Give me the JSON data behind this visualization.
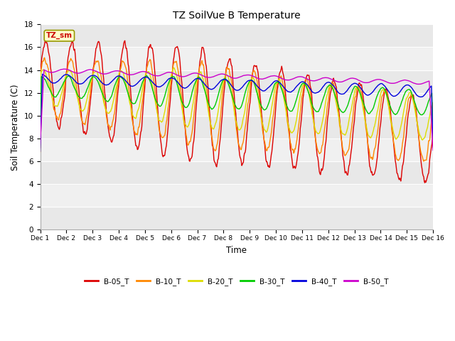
{
  "title": "TZ SoilVue B Temperature",
  "xlabel": "Time",
  "ylabel": "Soil Temperature (C)",
  "ylim": [
    0,
    18
  ],
  "yticks": [
    0,
    2,
    4,
    6,
    8,
    10,
    12,
    14,
    16,
    18
  ],
  "n_days": 15,
  "points_per_day": 48,
  "background_color": "#ffffff",
  "plot_bg_odd": "#e8e8e8",
  "plot_bg_even": "#f4f4f4",
  "annotation_text": "TZ_sm",
  "annotation_bg": "#ffffcc",
  "annotation_border": "#999900",
  "annotation_text_color": "#cc0000",
  "colors": {
    "B-05_T": "#dd0000",
    "B-10_T": "#ff8800",
    "B-20_T": "#dddd00",
    "B-30_T": "#00cc00",
    "B-40_T": "#0000dd",
    "B-50_T": "#cc00cc"
  },
  "legend_labels": [
    "B-05_T",
    "B-10_T",
    "B-20_T",
    "B-30_T",
    "B-40_T",
    "B-50_T"
  ]
}
